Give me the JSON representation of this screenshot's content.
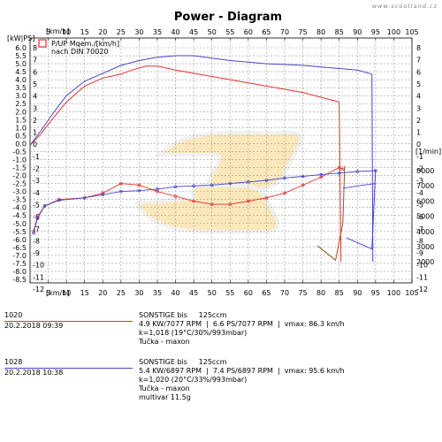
{
  "watermark": "www.scootland.cz",
  "chart_data": {
    "type": "line",
    "title": "Power - Diagram",
    "left_axis_unit": "[kW|PS]",
    "speed_unit": "[km/h]",
    "rpm_unit": "[1/min]",
    "legend_note_1": "P/UP Mqem./[km/h]",
    "legend_note_2": "nach DIN 70020",
    "x_ticks": [
      0,
      5,
      10,
      15,
      20,
      25,
      30,
      35,
      40,
      45,
      50,
      55,
      60,
      65,
      70,
      75,
      80,
      85,
      90,
      95,
      100,
      105
    ],
    "xlim": [
      0,
      105
    ],
    "left_ticks": [
      "6.0",
      "5.5",
      "5.0",
      "4.5",
      "4.0",
      "3.5",
      "3.0",
      "2.5",
      "2.0",
      "1.5",
      "1.0",
      "0.5",
      "0.0",
      "-0.5",
      "-1.0",
      "-1.5",
      "-2.0",
      "-2.5",
      "-3.0",
      "-3.5",
      "-4.0",
      "-4.5",
      "-5.0",
      "-5.5",
      "-6.0",
      "-6.5",
      "-7.0",
      "-7.5",
      "-8.0",
      "-8.5"
    ],
    "right_ps_ticks": [
      8,
      7,
      6,
      5,
      4,
      3,
      2,
      1,
      0,
      -1,
      -2,
      -3,
      -4,
      -5,
      -6,
      -7,
      -8,
      -9,
      -10,
      -11,
      -12
    ],
    "rpm_ticks": [
      8000,
      7000,
      6000,
      5000,
      4000,
      3000,
      2000
    ],
    "ylim_kw": [
      -8.5,
      6.0
    ],
    "series": [
      {
        "name": "1020",
        "color": "#e8302e",
        "power_kw": [
          [
            0,
            -0.1
          ],
          [
            3,
            0.6
          ],
          [
            6,
            1.5
          ],
          [
            10,
            2.6
          ],
          [
            15,
            3.6
          ],
          [
            20,
            4.1
          ],
          [
            25,
            4.35
          ],
          [
            28,
            4.6
          ],
          [
            32,
            4.85
          ],
          [
            35,
            4.85
          ],
          [
            40,
            4.6
          ],
          [
            45,
            4.4
          ],
          [
            50,
            4.2
          ],
          [
            55,
            4.0
          ],
          [
            60,
            3.8
          ],
          [
            65,
            3.6
          ],
          [
            70,
            3.4
          ],
          [
            75,
            3.2
          ],
          [
            80,
            2.9
          ],
          [
            85,
            2.6
          ]
        ],
        "rpm": [
          [
            1,
            -5.5
          ],
          [
            2,
            -4.6
          ],
          [
            4,
            -3.9
          ],
          [
            8,
            -3.5
          ],
          [
            15,
            -3.4
          ],
          [
            20,
            -3.1
          ],
          [
            25,
            -2.5
          ],
          [
            30,
            -2.6
          ],
          [
            35,
            -3.0
          ],
          [
            40,
            -3.3
          ],
          [
            45,
            -3.6
          ],
          [
            50,
            -3.8
          ],
          [
            55,
            -3.8
          ],
          [
            60,
            -3.6
          ],
          [
            65,
            -3.4
          ],
          [
            70,
            -3.1
          ],
          [
            75,
            -2.6
          ],
          [
            80,
            -2.1
          ],
          [
            85,
            -1.5
          ],
          [
            86,
            -1.6
          ]
        ]
      },
      {
        "name": "1028",
        "color": "#4545c8",
        "power_kw": [
          [
            0,
            -0.1
          ],
          [
            3,
            0.8
          ],
          [
            6,
            1.8
          ],
          [
            10,
            3.0
          ],
          [
            15,
            3.9
          ],
          [
            20,
            4.4
          ],
          [
            25,
            4.9
          ],
          [
            30,
            5.2
          ],
          [
            35,
            5.4
          ],
          [
            40,
            5.5
          ],
          [
            45,
            5.5
          ],
          [
            50,
            5.35
          ],
          [
            55,
            5.2
          ],
          [
            60,
            5.1
          ],
          [
            65,
            5.0
          ],
          [
            70,
            4.95
          ],
          [
            75,
            4.9
          ],
          [
            80,
            4.8
          ],
          [
            85,
            4.7
          ],
          [
            90,
            4.6
          ],
          [
            94,
            4.35
          ]
        ],
        "rpm": [
          [
            1,
            -5.6
          ],
          [
            2,
            -4.7
          ],
          [
            4,
            -3.9
          ],
          [
            8,
            -3.55
          ],
          [
            15,
            -3.4
          ],
          [
            20,
            -3.2
          ],
          [
            25,
            -3.0
          ],
          [
            30,
            -2.95
          ],
          [
            35,
            -2.85
          ],
          [
            40,
            -2.7
          ],
          [
            45,
            -2.65
          ],
          [
            50,
            -2.6
          ],
          [
            55,
            -2.5
          ],
          [
            60,
            -2.4
          ],
          [
            65,
            -2.3
          ],
          [
            70,
            -2.15
          ],
          [
            75,
            -2.05
          ],
          [
            80,
            -1.95
          ],
          [
            85,
            -1.85
          ],
          [
            90,
            -1.75
          ],
          [
            95,
            -1.7
          ]
        ]
      }
    ]
  },
  "runs": [
    {
      "id": "1020",
      "color": "#e8302e",
      "date": "20.2.2018  09:39",
      "lines": [
        "SONSTIGE bis     125ccm",
        "4.9 KW/7077 RPM  |  6.6 PS/7077 RPM  |  vmax: 86.3 km/h",
        "k=1,018 (19°C/30%/993mbar)",
        "Tučka - maxon"
      ]
    },
    {
      "id": "1028",
      "color": "#4545c8",
      "date": "20.2.2018  10:38",
      "lines": [
        "SONSTIGE bis     125ccm",
        "5.4 KW/6897 RPM  |  7.4 PS/6897 RPM  |  vmax: 95.6 km/h",
        "k=1,020 (20°C/33%/993mbar)",
        "Tučka - maxon",
        "multivar 11.5g"
      ]
    }
  ]
}
